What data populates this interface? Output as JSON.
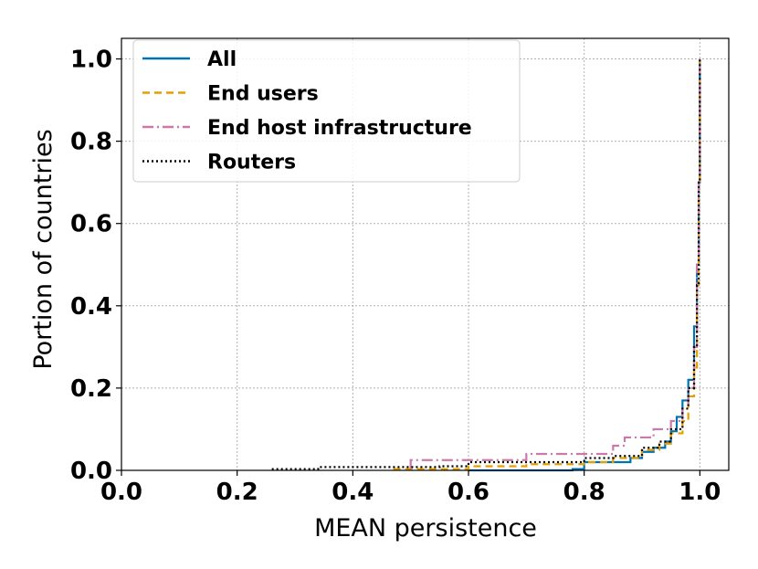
{
  "chart_data": {
    "type": "line",
    "xlabel": "MEAN persistence",
    "ylabel": "Portion of countries",
    "xlim": [
      0.0,
      1.05
    ],
    "ylim": [
      0.0,
      1.05
    ],
    "xticks": [
      "0.0",
      "0.2",
      "0.4",
      "0.6",
      "0.8",
      "1.0"
    ],
    "yticks": [
      "0.0",
      "0.2",
      "0.4",
      "0.6",
      "0.8",
      "1.0"
    ],
    "grid": true,
    "legend_position": "top-left",
    "series": [
      {
        "name": "All",
        "color": "#0072b2",
        "style": "solid",
        "points": [
          [
            0.6,
            0.0
          ],
          [
            0.78,
            0.003
          ],
          [
            0.8,
            0.02
          ],
          [
            0.88,
            0.03
          ],
          [
            0.9,
            0.045
          ],
          [
            0.92,
            0.055
          ],
          [
            0.94,
            0.07
          ],
          [
            0.95,
            0.095
          ],
          [
            0.96,
            0.13
          ],
          [
            0.97,
            0.17
          ],
          [
            0.98,
            0.22
          ],
          [
            0.99,
            0.35
          ],
          [
            0.995,
            0.5
          ],
          [
            0.998,
            0.7
          ],
          [
            1.0,
            1.0
          ]
        ]
      },
      {
        "name": "End users",
        "color": "#e69f00",
        "style": "dashed",
        "points": [
          [
            0.47,
            0.003
          ],
          [
            0.6,
            0.01
          ],
          [
            0.7,
            0.015
          ],
          [
            0.8,
            0.02
          ],
          [
            0.85,
            0.03
          ],
          [
            0.9,
            0.05
          ],
          [
            0.93,
            0.065
          ],
          [
            0.95,
            0.09
          ],
          [
            0.97,
            0.12
          ],
          [
            0.98,
            0.18
          ],
          [
            0.99,
            0.25
          ],
          [
            0.995,
            0.45
          ],
          [
            0.998,
            0.7
          ],
          [
            1.0,
            1.0
          ]
        ]
      },
      {
        "name": "End host infrastructure",
        "color": "#cc79a7",
        "style": "dashdot",
        "points": [
          [
            0.5,
            0.003
          ],
          [
            0.5,
            0.025
          ],
          [
            0.7,
            0.03
          ],
          [
            0.7,
            0.04
          ],
          [
            0.8,
            0.04
          ],
          [
            0.85,
            0.06
          ],
          [
            0.87,
            0.08
          ],
          [
            0.92,
            0.1
          ],
          [
            0.95,
            0.12
          ],
          [
            0.97,
            0.15
          ],
          [
            0.98,
            0.2
          ],
          [
            0.99,
            0.3
          ],
          [
            0.995,
            0.5
          ],
          [
            0.998,
            0.7
          ],
          [
            1.0,
            1.0
          ]
        ]
      },
      {
        "name": "Routers",
        "color": "#000000",
        "style": "dotted",
        "points": [
          [
            0.26,
            0.003
          ],
          [
            0.34,
            0.008
          ],
          [
            0.55,
            0.01
          ],
          [
            0.6,
            0.02
          ],
          [
            0.8,
            0.03
          ],
          [
            0.85,
            0.035
          ],
          [
            0.9,
            0.055
          ],
          [
            0.93,
            0.07
          ],
          [
            0.95,
            0.1
          ],
          [
            0.97,
            0.15
          ],
          [
            0.98,
            0.2
          ],
          [
            0.99,
            0.3
          ],
          [
            0.995,
            0.45
          ],
          [
            0.998,
            0.7
          ],
          [
            1.0,
            1.0
          ]
        ]
      }
    ]
  }
}
